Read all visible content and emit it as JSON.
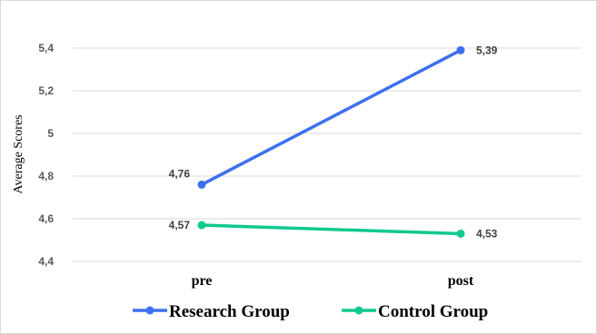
{
  "chart_data": {
    "type": "line",
    "ylabel": "Average Scores",
    "categories": [
      "pre",
      "post"
    ],
    "ylim": [
      4.4,
      5.4
    ],
    "yticks": [
      "4,4",
      "4,6",
      "4,8",
      "5",
      "5,2",
      "5,4"
    ],
    "grid": true,
    "legend_position": "bottom",
    "series": [
      {
        "name": "Research Group",
        "values": [
          4.76,
          5.39
        ],
        "labels": [
          "4,76",
          "5,39"
        ],
        "color": "#3F6FF0"
      },
      {
        "name": "Control Group",
        "values": [
          4.57,
          4.53
        ],
        "labels": [
          "4,57",
          "4,53"
        ],
        "color": "#10C98E"
      }
    ]
  }
}
